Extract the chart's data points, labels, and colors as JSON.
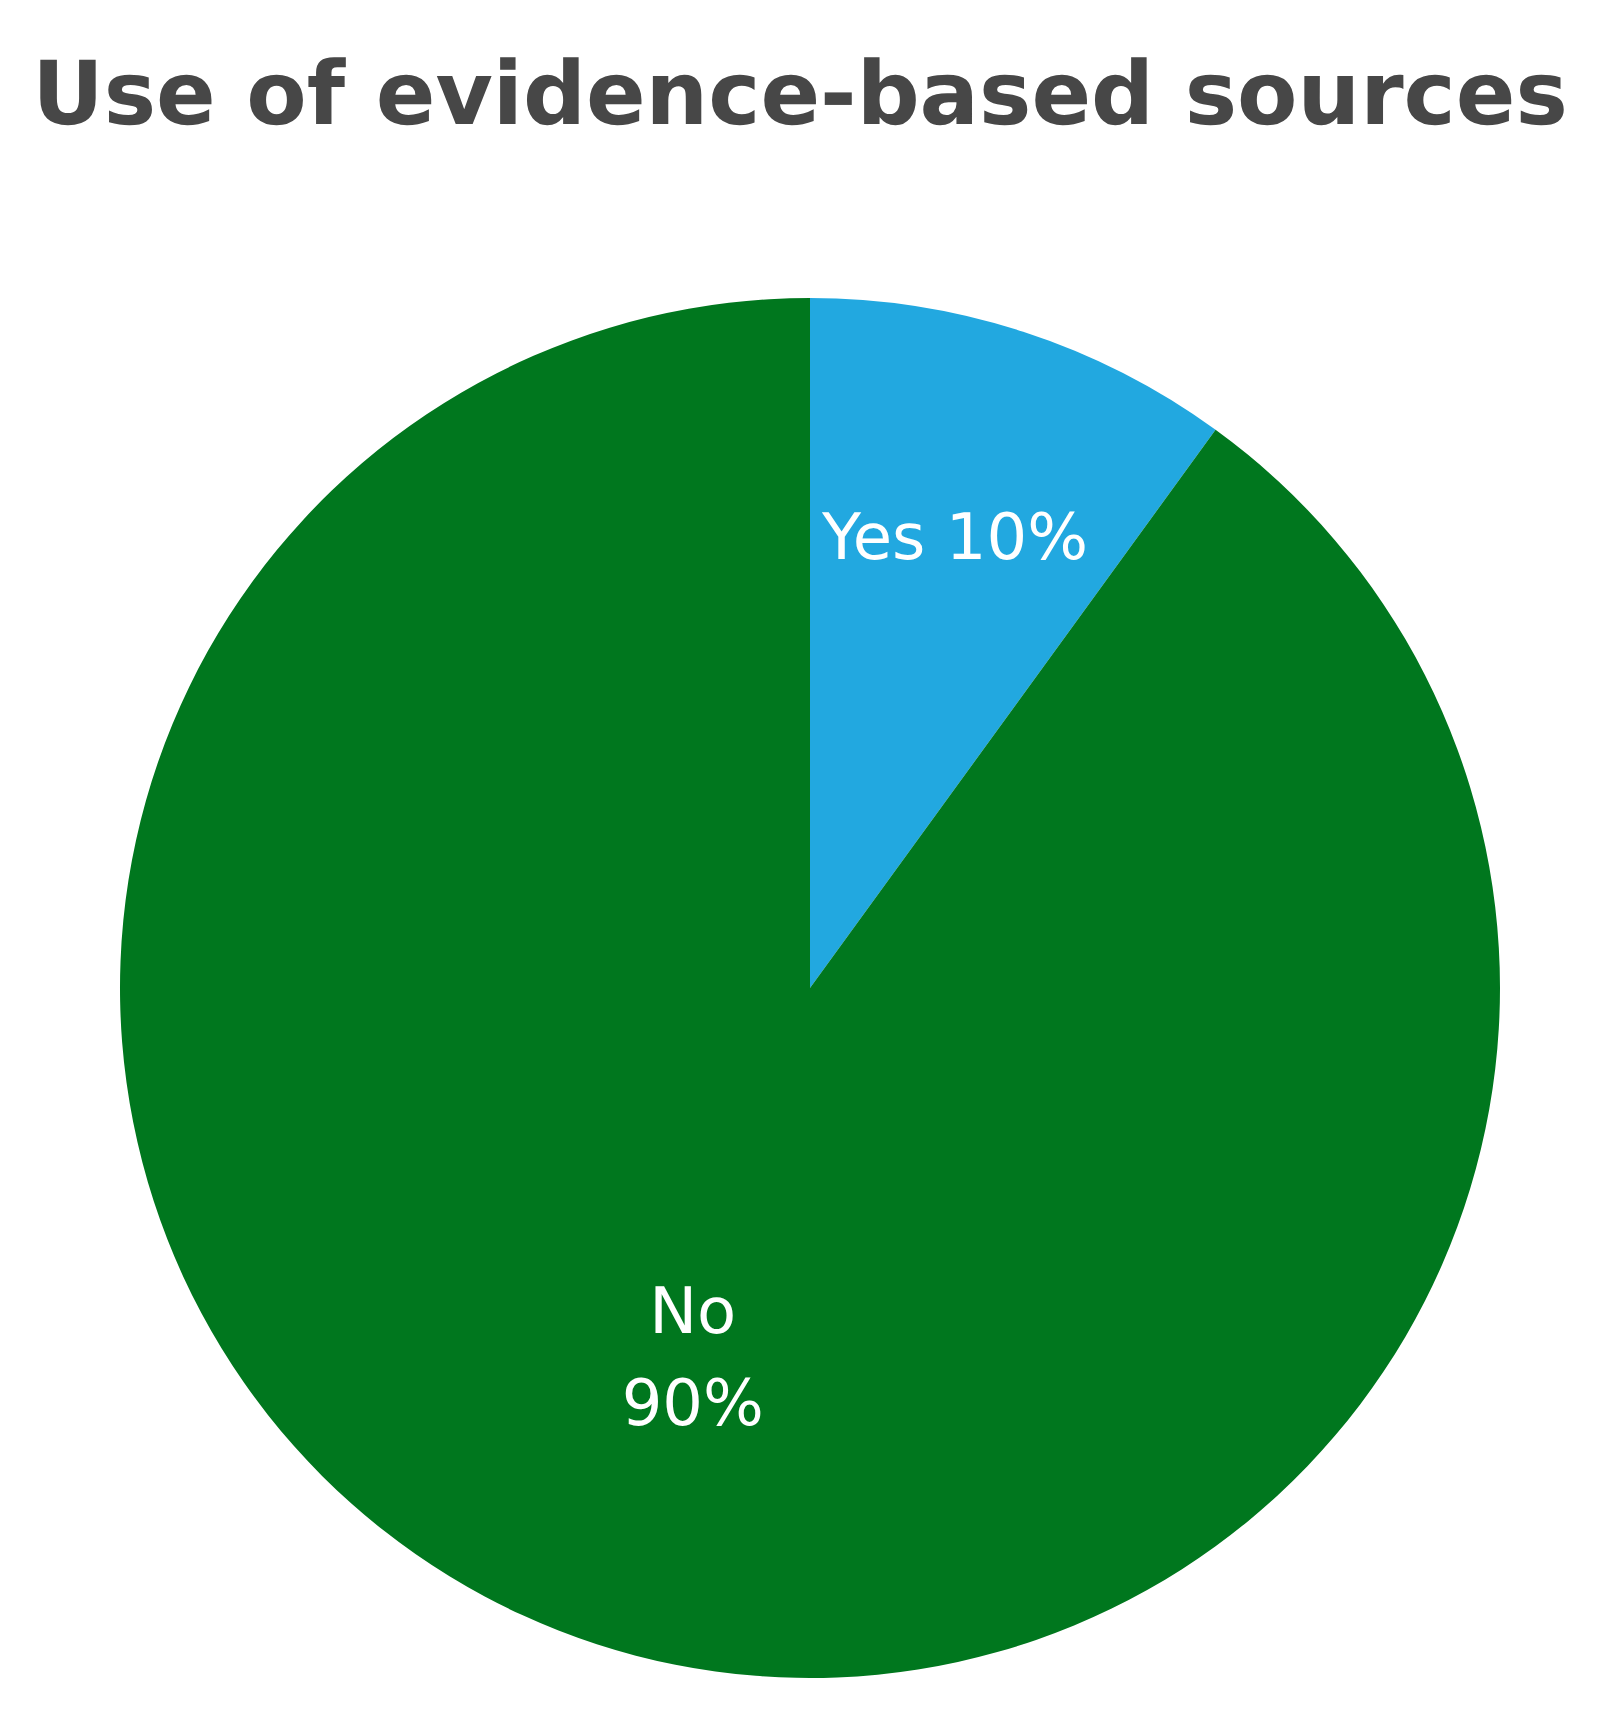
{
  "chart_data": {
    "type": "pie",
    "title": "Use of evidence-based sources",
    "categories": [
      "Yes",
      "No"
    ],
    "values": [
      10,
      90
    ],
    "colors": [
      "#22a8e0",
      "#00771e"
    ],
    "value_labels": [
      "10%",
      "90%"
    ]
  }
}
